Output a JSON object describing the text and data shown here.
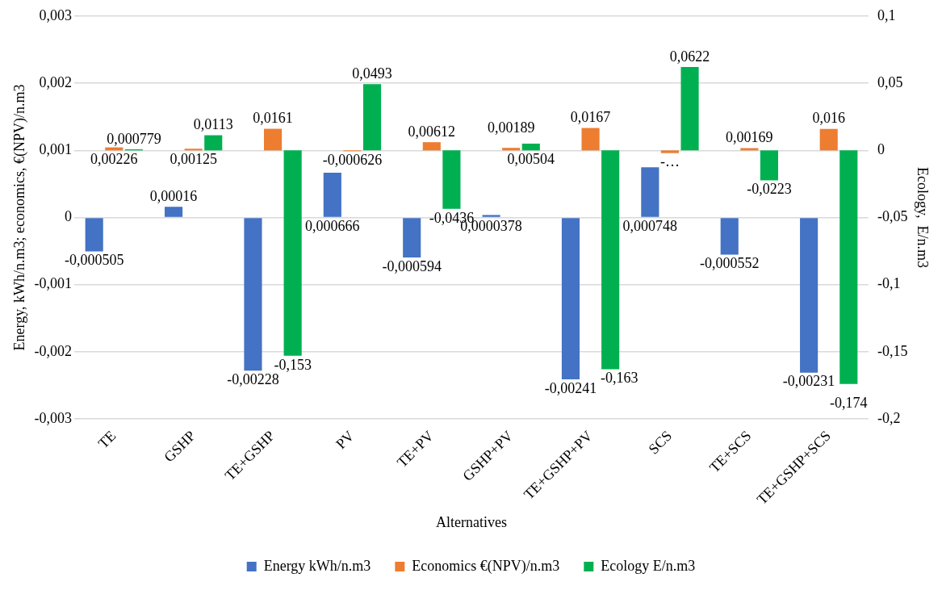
{
  "chart_data": {
    "type": "bar",
    "xlabel": "Alternatives",
    "ylabel": "Energy, kWh/n.m3; economics, €(NPV)/n.m3",
    "y2label": "Ecology,  E/n.m3",
    "categories": [
      "TE",
      "GSHP",
      "TE+GSHP",
      "PV",
      "TE+PV",
      "GSHP+PV",
      "TE+GSHP+PV",
      "SCS",
      "TE+SCS",
      "TE+GSHP+SCS"
    ],
    "series": [
      {
        "name": "Energy kWh/n.m3",
        "color": "#4472c4",
        "values": [
          -0.000505,
          0.00016,
          -0.00228,
          0.000666,
          -0.000594,
          3.78e-05,
          -0.00241,
          0.000748,
          -0.000552,
          -0.00231
        ],
        "value_labels": [
          "-0,000505",
          "0,00016",
          "-0,00228",
          "0,000666",
          "-0,000594",
          "0,0000378",
          "-0,00241",
          "0,000748",
          "-0,000552",
          "-0,00231"
        ]
      },
      {
        "name": "Economics €(NPV)/n.m3",
        "color": "#ed7d31",
        "axis": "y2",
        "values": [
          0.00226,
          0.00125,
          0.0161,
          -0.000626,
          0.00612,
          0.00189,
          0.0167,
          -0.002,
          0.00169,
          0.016
        ],
        "value_labels": [
          "0,00226",
          "0,00125",
          "0,0161",
          "-0,000626",
          "0,00612",
          "0,00189",
          "0,0167",
          "-…",
          "0,00169",
          "0,016"
        ]
      },
      {
        "name": "Ecology E/n.m3",
        "color": "#00b050",
        "axis": "y2",
        "values": [
          0.000779,
          0.0113,
          -0.153,
          0.0493,
          -0.0436,
          0.00504,
          -0.163,
          0.0622,
          -0.0223,
          -0.174
        ],
        "value_labels": [
          "0,000779",
          "0,0113",
          "-0,153",
          "0,0493",
          "-0,0436",
          "0,00504",
          "-0,163",
          "0,0622",
          "-0,0223",
          "-0,174"
        ]
      }
    ],
    "ylim": [
      -0.003,
      0.003
    ],
    "yticks": [
      {
        "value": -0.003,
        "label": "-0,003"
      },
      {
        "value": -0.002,
        "label": "-0,002"
      },
      {
        "value": -0.001,
        "label": "-0,001"
      },
      0,
      {
        "value": 0.001,
        "label": "0,001"
      },
      {
        "value": 0.002,
        "label": "0,002"
      },
      {
        "value": 0.003,
        "label": "0,003"
      }
    ],
    "y2lim": [
      -0.2,
      0.1
    ],
    "y2ticks": [
      {
        "value": -0.2,
        "label": "-0,2"
      },
      {
        "value": -0.15,
        "label": "-0,15"
      },
      {
        "value": -0.1,
        "label": "-0,1"
      },
      {
        "value": -0.05,
        "label": "-0,05"
      },
      0,
      {
        "value": 0.05,
        "label": "0,05"
      },
      {
        "value": 0.1,
        "label": "0,1"
      }
    ],
    "grid": "y",
    "legend": "bottom"
  }
}
